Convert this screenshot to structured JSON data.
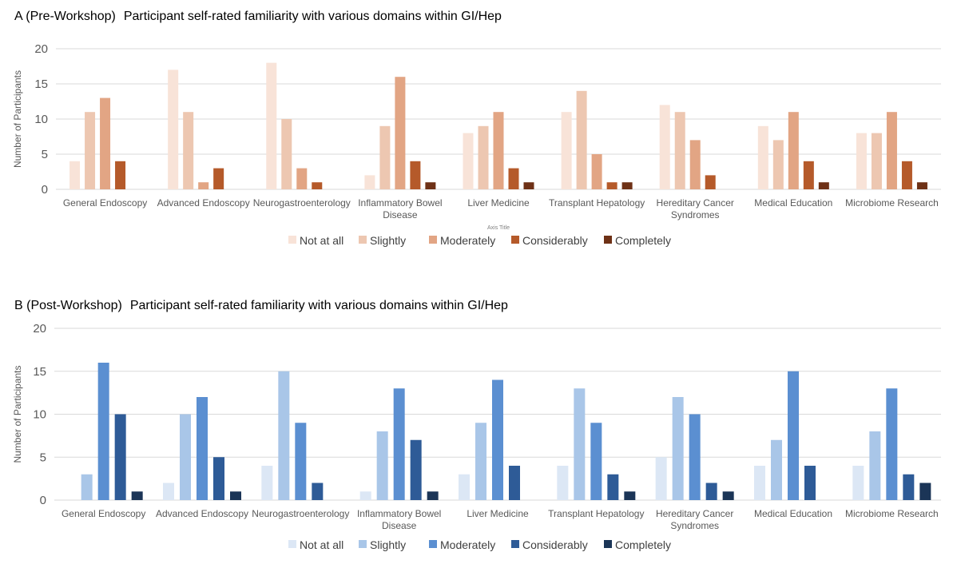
{
  "chart_data": [
    {
      "type": "bar",
      "panel_label": "A (Pre-Workshop)",
      "title": "Participant self-rated familiarity with various domains within GI/Hep",
      "xlabel": "Axis Title",
      "ylabel": "Number of Participants",
      "ylim": [
        0,
        20
      ],
      "yticks": [
        0,
        5,
        10,
        15,
        20
      ],
      "grid": true,
      "legend_position": "bottom",
      "categories": [
        "General Endoscopy",
        "Advanced Endoscopy",
        "Neurogastroenterology",
        "Inflammatory Bowel Disease",
        "Liver Medicine",
        "Transplant Hepatology",
        "Hereditary Cancer Syndromes",
        "Medical Education",
        "Microbiome Research"
      ],
      "category_lines": [
        [
          "General Endoscopy"
        ],
        [
          "Advanced Endoscopy"
        ],
        [
          "Neurogastroenterology"
        ],
        [
          "Inflammatory Bowel",
          "Disease"
        ],
        [
          "Liver Medicine"
        ],
        [
          "Transplant Hepatology"
        ],
        [
          "Hereditary Cancer",
          "Syndromes"
        ],
        [
          "Medical Education"
        ],
        [
          "Microbiome Research"
        ]
      ],
      "series": [
        {
          "name": "Not at all",
          "color": "#F8E3D8",
          "values": [
            4,
            17,
            18,
            2,
            8,
            11,
            12,
            9,
            8
          ]
        },
        {
          "name": "Slightly",
          "color": "#EDC7B1",
          "values": [
            11,
            11,
            10,
            9,
            9,
            14,
            11,
            7,
            8
          ]
        },
        {
          "name": "Moderately",
          "color": "#E2A584",
          "values": [
            13,
            1,
            3,
            16,
            11,
            5,
            7,
            11,
            11
          ]
        },
        {
          "name": "Considerably",
          "color": "#B55A2A",
          "values": [
            4,
            3,
            1,
            4,
            3,
            1,
            2,
            4,
            4
          ]
        },
        {
          "name": "Completely",
          "color": "#6E3116",
          "values": [
            0,
            0,
            0,
            1,
            1,
            1,
            0,
            1,
            1
          ]
        }
      ]
    },
    {
      "type": "bar",
      "panel_label": "B (Post-Workshop)",
      "title": "Participant self-rated familiarity with various domains within GI/Hep",
      "xlabel": "",
      "ylabel": "Number of Participants",
      "ylim": [
        0,
        20
      ],
      "yticks": [
        0,
        5,
        10,
        15,
        20
      ],
      "grid": true,
      "legend_position": "bottom",
      "categories": [
        "General Endoscopy",
        "Advanced Endoscopy",
        "Neurogastroenterology",
        "Inflammatory Bowel Disease",
        "Liver Medicine",
        "Transplant Hepatology",
        "Hereditary Cancer Syndromes",
        "Medical Education",
        "Microbiome Research"
      ],
      "category_lines": [
        [
          "General Endoscopy"
        ],
        [
          "Advanced Endoscopy"
        ],
        [
          "Neurogastroenterology"
        ],
        [
          "Inflammatory Bowel",
          "Disease"
        ],
        [
          "Liver Medicine"
        ],
        [
          "Transplant Hepatology"
        ],
        [
          "Hereditary Cancer",
          "Syndromes"
        ],
        [
          "Medical Education"
        ],
        [
          "Microbiome Research"
        ]
      ],
      "series": [
        {
          "name": "Not at all",
          "color": "#DCE7F5",
          "values": [
            0,
            2,
            4,
            1,
            3,
            4,
            5,
            4,
            4
          ]
        },
        {
          "name": "Slightly",
          "color": "#A9C6E8",
          "values": [
            3,
            10,
            15,
            8,
            9,
            13,
            12,
            7,
            8
          ]
        },
        {
          "name": "Moderately",
          "color": "#5B8FD1",
          "values": [
            16,
            12,
            9,
            13,
            14,
            9,
            10,
            15,
            13
          ]
        },
        {
          "name": "Considerably",
          "color": "#2E5B97",
          "values": [
            10,
            5,
            2,
            7,
            4,
            3,
            2,
            4,
            3
          ]
        },
        {
          "name": "Completely",
          "color": "#1B3557",
          "values": [
            1,
            1,
            0,
            1,
            0,
            1,
            1,
            0,
            2
          ]
        }
      ]
    }
  ]
}
